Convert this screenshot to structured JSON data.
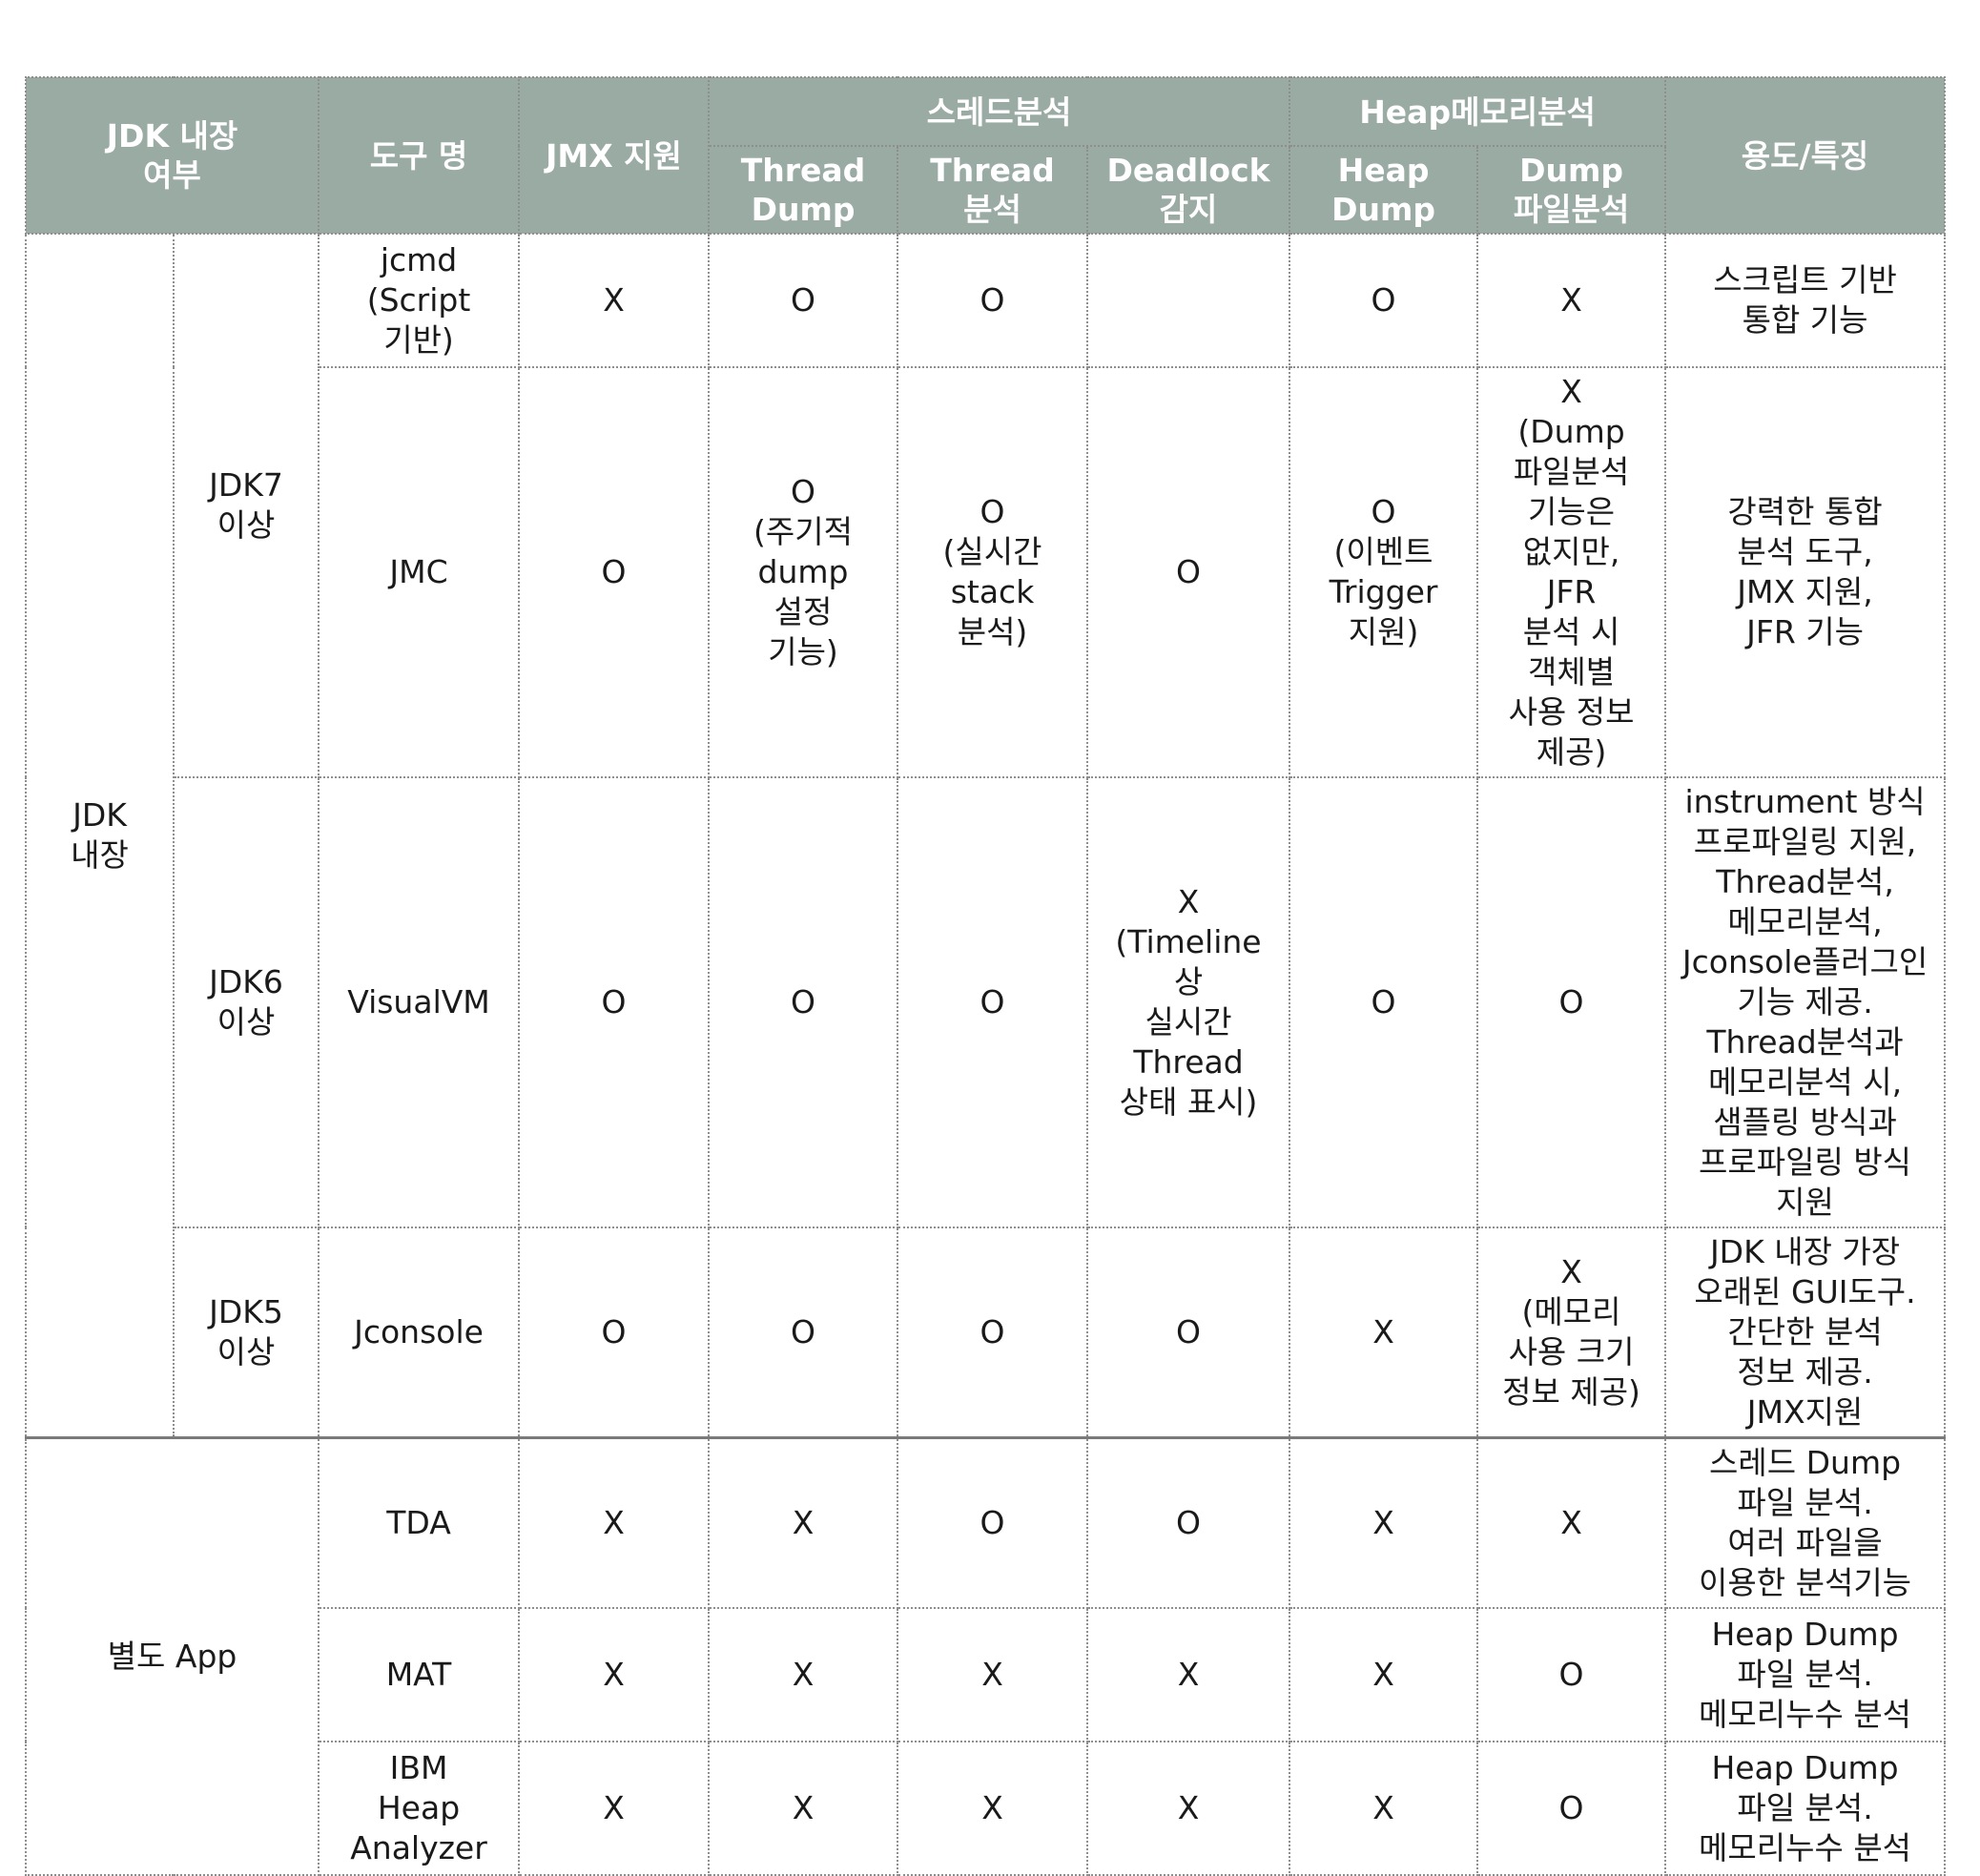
{
  "header": {
    "col_jdk": "JDK 내장\n여부",
    "col_tool": "도구 명",
    "col_jmx": "JMX 지원",
    "group_thread": "스레드분석",
    "thread_dump": "Thread\nDump",
    "thread_analysis": "Thread\n분석",
    "deadlock": "Deadlock\n감지",
    "group_heap": "Heap메모리분석",
    "heap_dump": "Heap\nDump",
    "dump_file": "Dump\n파일분석",
    "col_usage": "용도/특징"
  },
  "groups": {
    "jdk_builtin": "JDK\n내장",
    "separate_app": "별도 App"
  },
  "versions": {
    "jdk7": "JDK7\n이상",
    "jdk6": "JDK6\n이상",
    "jdk5": "JDK5\n이상"
  },
  "rows": [
    {
      "tool": "jcmd\n(Script\n기반)",
      "jmx": "X",
      "thread_dump": "O",
      "thread_analysis": "O",
      "deadlock": "",
      "heap_dump": "O",
      "dump_file": "X",
      "usage": "스크립트 기반\n통합 기능"
    },
    {
      "tool": "JMC",
      "jmx": "O",
      "thread_dump": "O\n(주기적\ndump\n설정\n기능)",
      "thread_analysis": "O\n(실시간\nstack\n분석)",
      "deadlock": "O",
      "heap_dump": "O\n(이벤트\nTrigger\n지원)",
      "dump_file": "X\n(Dump\n파일분석\n기능은\n없지만,\nJFR\n분석 시\n객체별\n사용 정보\n제공)",
      "usage": "강력한 통합\n분석 도구,\nJMX 지원,\nJFR 기능"
    },
    {
      "tool": "VisualVM",
      "jmx": "O",
      "thread_dump": "O",
      "thread_analysis": "O",
      "deadlock": "X\n(Timeline\n상\n실시간\nThread\n상태 표시)",
      "heap_dump": "O",
      "dump_file": "O",
      "usage": "instrument 방식\n프로파일링 지원,\nThread분석,\n메모리분석,\nJconsole플러그인\n기능 제공.\nThread분석과\n메모리분석 시,\n샘플링 방식과\n프로파일링 방식\n지원"
    },
    {
      "tool": "Jconsole",
      "jmx": "O",
      "thread_dump": "O",
      "thread_analysis": "O",
      "deadlock": "O",
      "heap_dump": "X",
      "dump_file": "X\n(메모리\n사용 크기\n정보 제공)",
      "usage": "JDK 내장 가장\n오래된 GUI도구.\n간단한 분석\n정보 제공.\nJMX지원"
    },
    {
      "tool": "TDA",
      "jmx": "X",
      "thread_dump": "X",
      "thread_analysis": "O",
      "deadlock": "O",
      "heap_dump": "X",
      "dump_file": "X",
      "usage": "스레드 Dump\n파일 분석.\n여러 파일을\n이용한 분석기능"
    },
    {
      "tool": "MAT",
      "jmx": "X",
      "thread_dump": "X",
      "thread_analysis": "X",
      "deadlock": "X",
      "heap_dump": "X",
      "dump_file": "O",
      "usage": "Heap Dump\n파일 분석.\n메모리누수 분석"
    },
    {
      "tool": "IBM\nHeap\nAnalyzer",
      "jmx": "X",
      "thread_dump": "X",
      "thread_analysis": "X",
      "deadlock": "X",
      "heap_dump": "X",
      "dump_file": "O",
      "usage": "Heap Dump\n파일 분석.\n메모리누수 분석"
    }
  ]
}
